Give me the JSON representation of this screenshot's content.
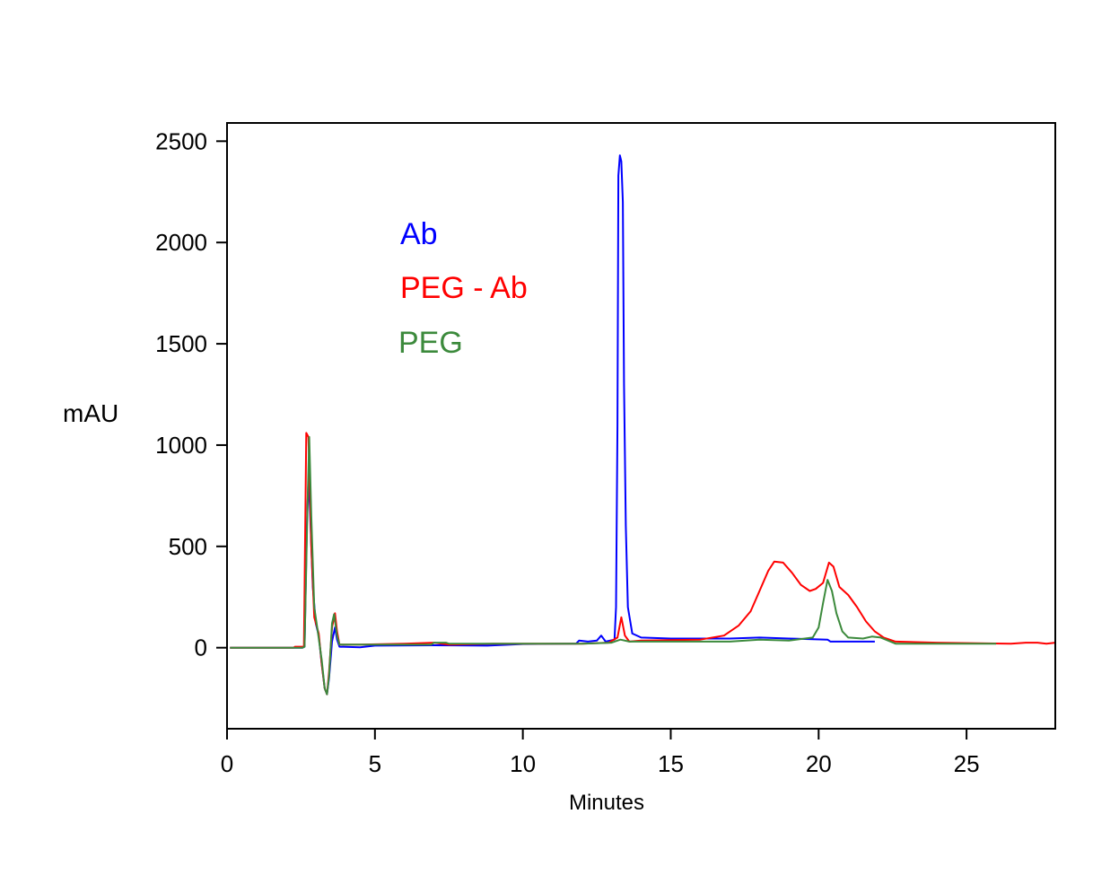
{
  "chart_data": {
    "type": "line",
    "title": "",
    "xlabel": "Minutes",
    "ylabel": "mAU",
    "xlim": [
      0,
      28
    ],
    "ylim": [
      -400,
      2590
    ],
    "xticks": [
      0,
      5,
      10,
      15,
      20,
      25
    ],
    "yticks": [
      0,
      500,
      1000,
      1500,
      2000,
      2500
    ],
    "grid": false,
    "legend_placement": "top-left",
    "series": [
      {
        "name": "Ab",
        "color": "#0000ff",
        "points": [
          [
            0.1,
            0
          ],
          [
            2.55,
            0
          ],
          [
            2.62,
            5
          ],
          [
            2.7,
            600
          ],
          [
            2.75,
            830
          ],
          [
            2.8,
            700
          ],
          [
            2.9,
            300
          ],
          [
            3.0,
            120
          ],
          [
            3.1,
            60
          ],
          [
            3.2,
            -80
          ],
          [
            3.3,
            -200
          ],
          [
            3.38,
            -230
          ],
          [
            3.45,
            -150
          ],
          [
            3.55,
            30
          ],
          [
            3.65,
            100
          ],
          [
            3.72,
            40
          ],
          [
            3.8,
            5
          ],
          [
            4.5,
            2
          ],
          [
            5,
            10
          ],
          [
            7,
            12
          ],
          [
            8.8,
            10
          ],
          [
            10,
            18
          ],
          [
            11.8,
            20
          ],
          [
            11.9,
            35
          ],
          [
            12.2,
            30
          ],
          [
            12.5,
            35
          ],
          [
            12.65,
            60
          ],
          [
            12.8,
            30
          ],
          [
            13.1,
            40
          ],
          [
            13.15,
            200
          ],
          [
            13.2,
            1100
          ],
          [
            13.23,
            2330
          ],
          [
            13.28,
            2430
          ],
          [
            13.33,
            2400
          ],
          [
            13.38,
            2200
          ],
          [
            13.42,
            1300
          ],
          [
            13.48,
            600
          ],
          [
            13.55,
            200
          ],
          [
            13.7,
            70
          ],
          [
            14,
            50
          ],
          [
            15,
            45
          ],
          [
            17,
            45
          ],
          [
            18,
            50
          ],
          [
            19,
            45
          ],
          [
            20.3,
            40
          ],
          [
            20.4,
            30
          ],
          [
            21.9,
            30
          ]
        ]
      },
      {
        "name": "PEG - Ab",
        "color": "#ff0000",
        "points": [
          [
            0.1,
            0
          ],
          [
            2.25,
            0
          ],
          [
            2.3,
            5
          ],
          [
            2.6,
            5
          ],
          [
            2.68,
            1060
          ],
          [
            2.75,
            1040
          ],
          [
            2.85,
            500
          ],
          [
            2.95,
            150
          ],
          [
            3.1,
            70
          ],
          [
            3.2,
            -80
          ],
          [
            3.3,
            -200
          ],
          [
            3.38,
            -230
          ],
          [
            3.45,
            -120
          ],
          [
            3.55,
            100
          ],
          [
            3.65,
            170
          ],
          [
            3.72,
            80
          ],
          [
            3.8,
            15
          ],
          [
            4.5,
            15
          ],
          [
            6,
            20
          ],
          [
            7,
            25
          ],
          [
            7.5,
            15
          ],
          [
            9,
            20
          ],
          [
            12,
            20
          ],
          [
            12.9,
            25
          ],
          [
            13.2,
            50
          ],
          [
            13.33,
            150
          ],
          [
            13.45,
            60
          ],
          [
            13.6,
            30
          ],
          [
            14,
            35
          ],
          [
            16,
            40
          ],
          [
            16.8,
            60
          ],
          [
            17.3,
            110
          ],
          [
            17.7,
            180
          ],
          [
            18.0,
            280
          ],
          [
            18.3,
            380
          ],
          [
            18.5,
            425
          ],
          [
            18.8,
            420
          ],
          [
            19.1,
            370
          ],
          [
            19.4,
            310
          ],
          [
            19.7,
            280
          ],
          [
            19.9,
            290
          ],
          [
            20.15,
            320
          ],
          [
            20.35,
            420
          ],
          [
            20.5,
            400
          ],
          [
            20.7,
            300
          ],
          [
            21.0,
            260
          ],
          [
            21.3,
            200
          ],
          [
            21.6,
            130
          ],
          [
            21.9,
            80
          ],
          [
            22.2,
            50
          ],
          [
            22.6,
            30
          ],
          [
            24,
            25
          ],
          [
            26.5,
            20
          ],
          [
            27,
            25
          ],
          [
            27.4,
            25
          ],
          [
            27.7,
            20
          ],
          [
            28,
            25
          ]
        ]
      },
      {
        "name": "PEG",
        "color": "#3c8a3c",
        "points": [
          [
            0.1,
            0
          ],
          [
            2.55,
            0
          ],
          [
            2.62,
            5
          ],
          [
            2.72,
            700
          ],
          [
            2.78,
            1040
          ],
          [
            2.85,
            650
          ],
          [
            2.95,
            200
          ],
          [
            3.05,
            100
          ],
          [
            3.2,
            -60
          ],
          [
            3.3,
            -200
          ],
          [
            3.38,
            -230
          ],
          [
            3.45,
            -140
          ],
          [
            3.55,
            120
          ],
          [
            3.62,
            165
          ],
          [
            3.72,
            60
          ],
          [
            3.8,
            15
          ],
          [
            5,
            15
          ],
          [
            6.9,
            15
          ],
          [
            7.0,
            25
          ],
          [
            7.4,
            25
          ],
          [
            7.5,
            20
          ],
          [
            12,
            20
          ],
          [
            13.0,
            25
          ],
          [
            13.3,
            40
          ],
          [
            13.6,
            30
          ],
          [
            15,
            30
          ],
          [
            17,
            30
          ],
          [
            18,
            40
          ],
          [
            19,
            35
          ],
          [
            19.8,
            50
          ],
          [
            20.0,
            100
          ],
          [
            20.15,
            220
          ],
          [
            20.3,
            335
          ],
          [
            20.45,
            280
          ],
          [
            20.6,
            170
          ],
          [
            20.8,
            80
          ],
          [
            21.0,
            50
          ],
          [
            21.5,
            45
          ],
          [
            21.8,
            55
          ],
          [
            22.1,
            50
          ],
          [
            22.6,
            20
          ],
          [
            24,
            20
          ],
          [
            26,
            20
          ]
        ]
      }
    ]
  }
}
